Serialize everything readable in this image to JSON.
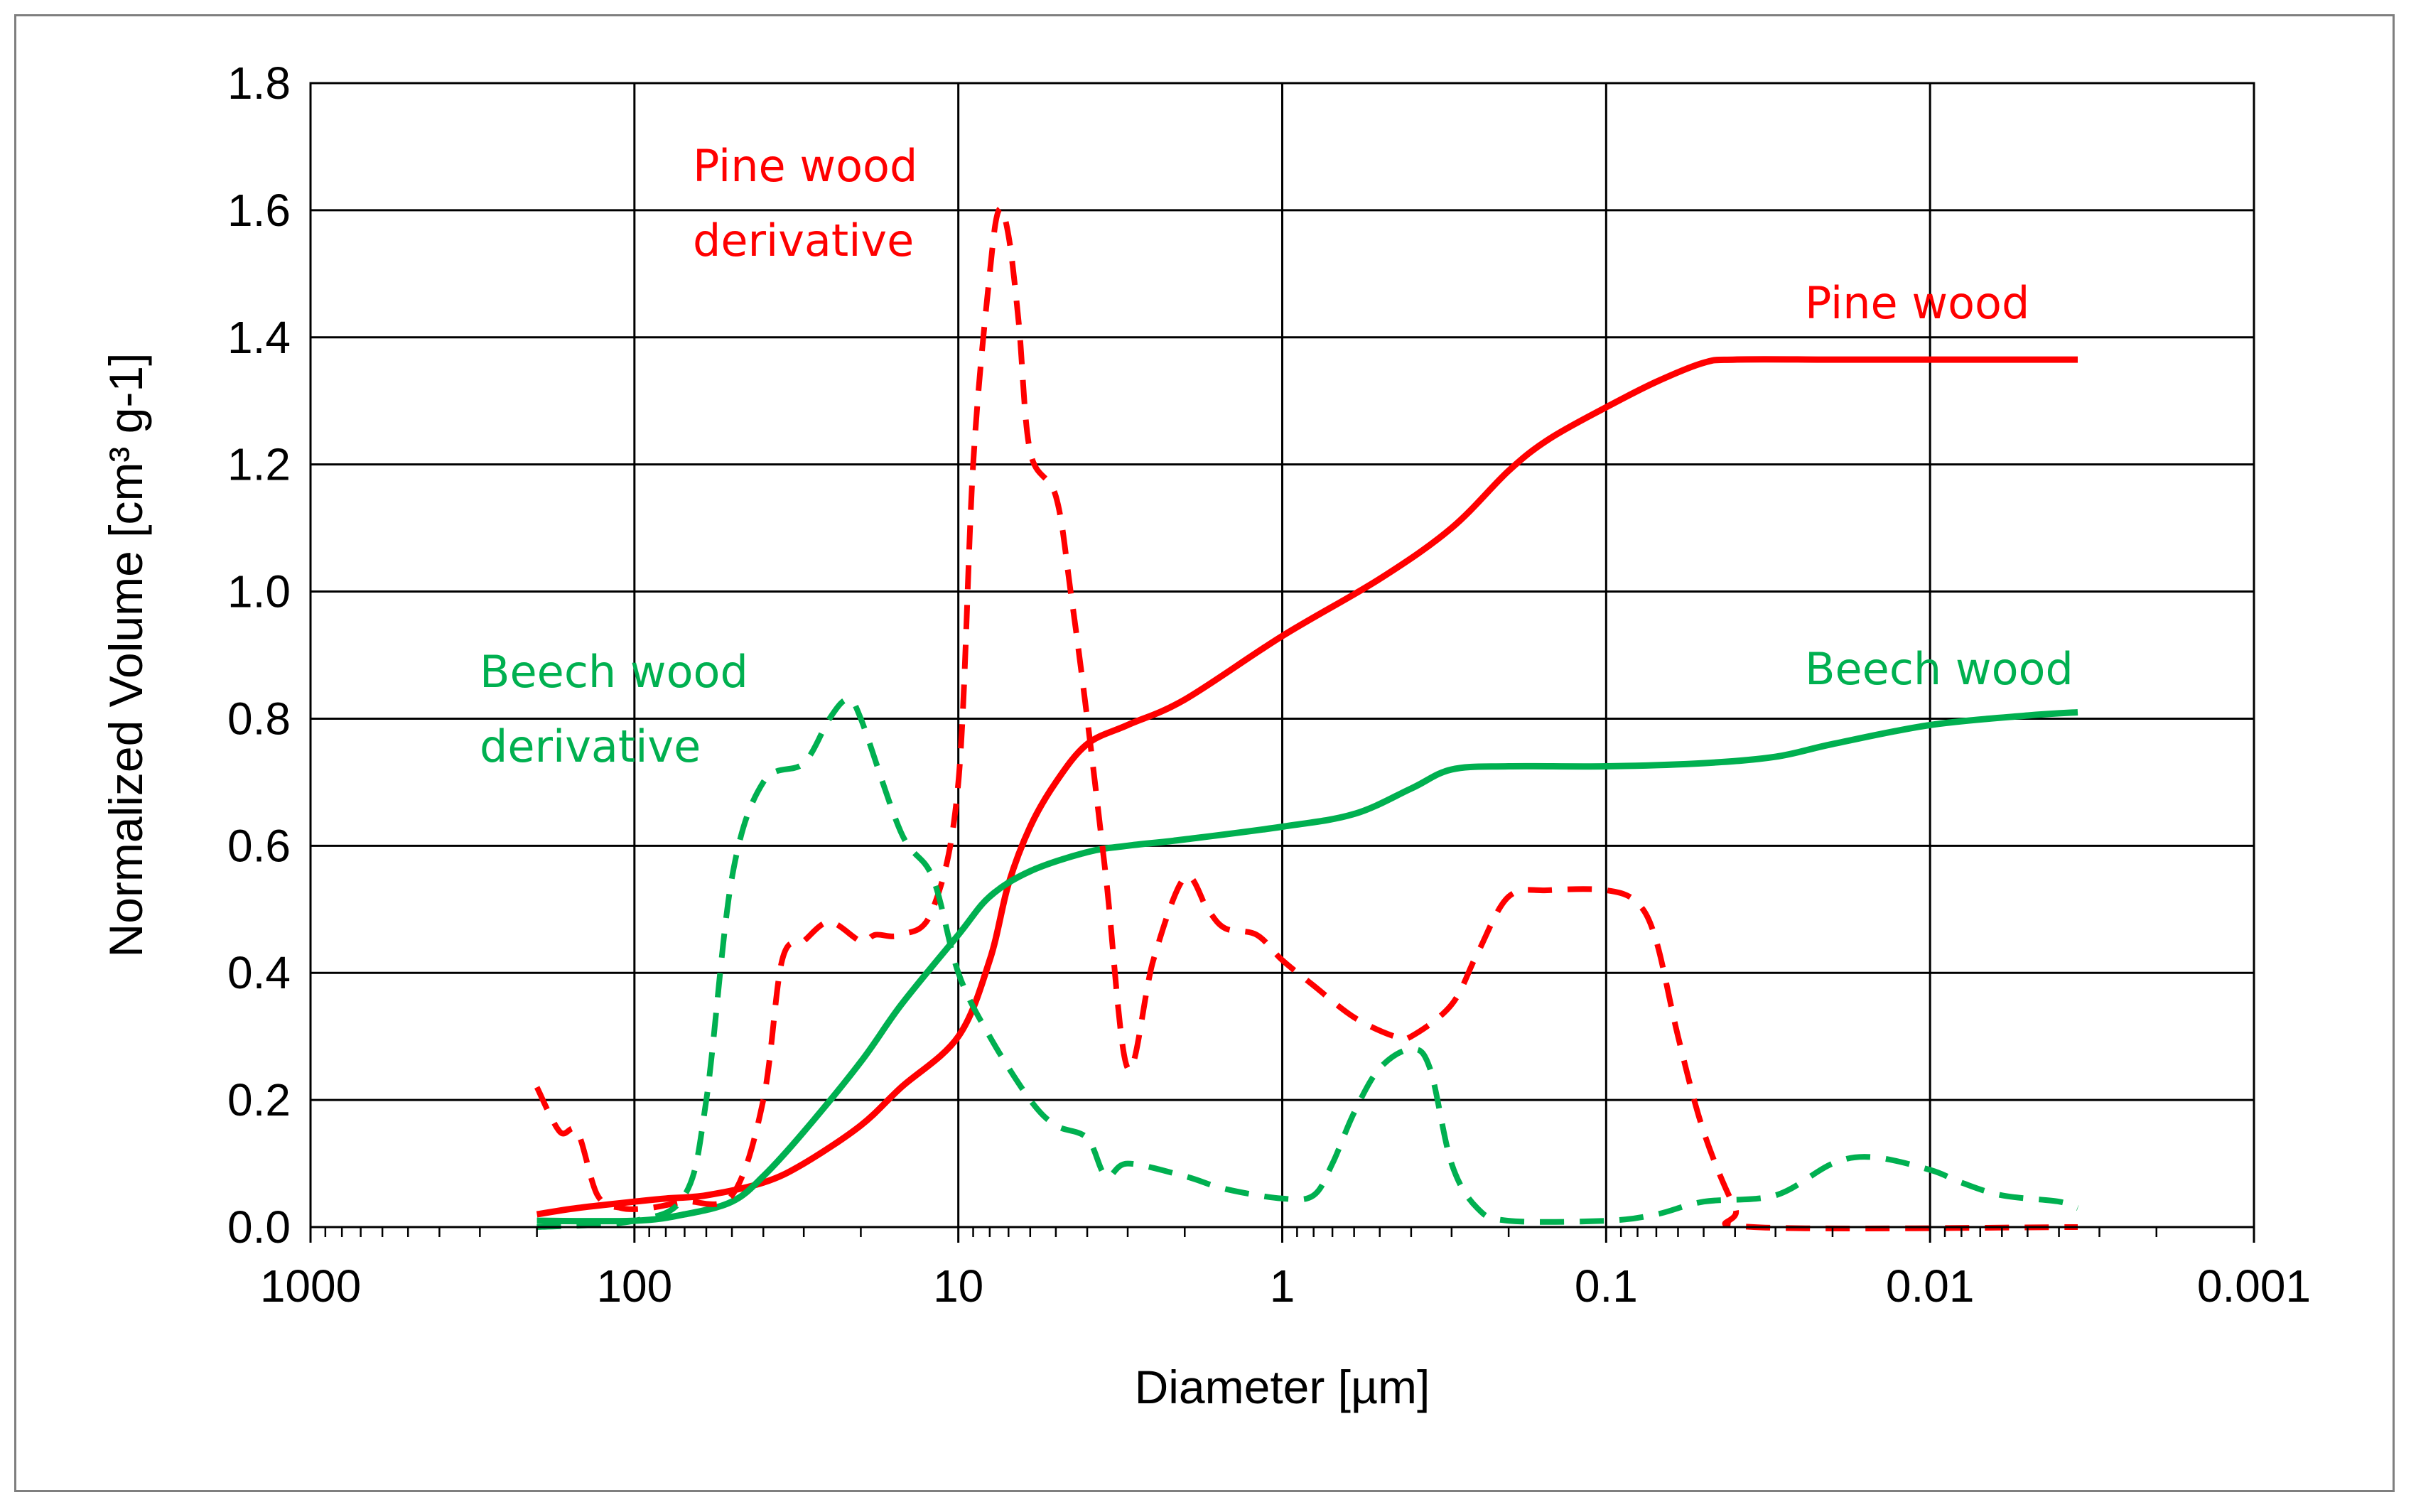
{
  "chart_data": {
    "type": "line",
    "xlabel": "Diameter [µm]",
    "ylabel": "Normalized Volume [cm³ g-1]",
    "xscale": "log",
    "xaxis_reversed": true,
    "xlim": [
      1000,
      0.001
    ],
    "ylim": [
      0,
      1.8
    ],
    "grid": true,
    "legend": "none",
    "x_ticks": [
      {
        "value": 1000,
        "label": "1000"
      },
      {
        "value": 100,
        "label": "100"
      },
      {
        "value": 10,
        "label": "10"
      },
      {
        "value": 1,
        "label": "1"
      },
      {
        "value": 0.1,
        "label": "0.1"
      },
      {
        "value": 0.01,
        "label": "0.01"
      },
      {
        "value": 0.001,
        "label": "0.001"
      }
    ],
    "y_ticks": [
      {
        "value": 0,
        "label": "0.0"
      },
      {
        "value": 0.2,
        "label": "0.2"
      },
      {
        "value": 0.4,
        "label": "0.4"
      },
      {
        "value": 0.6,
        "label": "0.6"
      },
      {
        "value": 0.8,
        "label": "0.8"
      },
      {
        "value": 1.0,
        "label": "1.0"
      },
      {
        "value": 1.2,
        "label": "1.2"
      },
      {
        "value": 1.4,
        "label": "1.4"
      },
      {
        "value": 1.6,
        "label": "1.6"
      },
      {
        "value": 1.8,
        "label": "1.8"
      }
    ],
    "series": [
      {
        "key": "pine-wood",
        "color": "#ff0000",
        "dash": false,
        "points": [
          [
            200,
            0.02
          ],
          [
            150,
            0.03
          ],
          [
            100,
            0.04
          ],
          [
            80,
            0.045
          ],
          [
            60,
            0.05
          ],
          [
            40,
            0.07
          ],
          [
            30,
            0.1
          ],
          [
            20,
            0.16
          ],
          [
            15,
            0.22
          ],
          [
            10,
            0.3
          ],
          [
            8,
            0.42
          ],
          [
            7,
            0.54
          ],
          [
            6,
            0.63
          ],
          [
            5,
            0.7
          ],
          [
            4,
            0.76
          ],
          [
            3,
            0.79
          ],
          [
            2,
            0.83
          ],
          [
            1,
            0.93
          ],
          [
            0.5,
            1.02
          ],
          [
            0.3,
            1.1
          ],
          [
            0.2,
            1.19
          ],
          [
            0.15,
            1.24
          ],
          [
            0.1,
            1.29
          ],
          [
            0.07,
            1.33
          ],
          [
            0.05,
            1.36
          ],
          [
            0.04,
            1.365
          ],
          [
            0.02,
            1.365
          ],
          [
            0.01,
            1.365
          ],
          [
            0.0035,
            1.365
          ]
        ]
      },
      {
        "key": "beech-wood",
        "color": "#00b050",
        "dash": false,
        "points": [
          [
            200,
            0.01
          ],
          [
            100,
            0.01
          ],
          [
            70,
            0.02
          ],
          [
            50,
            0.04
          ],
          [
            40,
            0.08
          ],
          [
            30,
            0.15
          ],
          [
            20,
            0.26
          ],
          [
            15,
            0.35
          ],
          [
            10,
            0.46
          ],
          [
            8,
            0.52
          ],
          [
            6,
            0.56
          ],
          [
            4,
            0.59
          ],
          [
            3,
            0.6
          ],
          [
            2,
            0.61
          ],
          [
            1,
            0.63
          ],
          [
            0.6,
            0.65
          ],
          [
            0.4,
            0.69
          ],
          [
            0.3,
            0.72
          ],
          [
            0.2,
            0.725
          ],
          [
            0.1,
            0.725
          ],
          [
            0.05,
            0.73
          ],
          [
            0.03,
            0.74
          ],
          [
            0.02,
            0.76
          ],
          [
            0.01,
            0.79
          ],
          [
            0.005,
            0.805
          ],
          [
            0.0035,
            0.81
          ]
        ]
      },
      {
        "key": "pine-wood-derivative",
        "color": "#ff0000",
        "dash": true,
        "points": [
          [
            200,
            0.22
          ],
          [
            170,
            0.15
          ],
          [
            150,
            0.15
          ],
          [
            130,
            0.05
          ],
          [
            110,
            0.03
          ],
          [
            90,
            0.03
          ],
          [
            70,
            0.04
          ],
          [
            50,
            0.05
          ],
          [
            40,
            0.2
          ],
          [
            35,
            0.42
          ],
          [
            30,
            0.45
          ],
          [
            25,
            0.48
          ],
          [
            20,
            0.45
          ],
          [
            18,
            0.46
          ],
          [
            15,
            0.46
          ],
          [
            12,
            0.5
          ],
          [
            10,
            0.7
          ],
          [
            9,
            1.2
          ],
          [
            8,
            1.5
          ],
          [
            7.5,
            1.6
          ],
          [
            7,
            1.56
          ],
          [
            6.5,
            1.42
          ],
          [
            6,
            1.22
          ],
          [
            5,
            1.15
          ],
          [
            4.5,
            1.0
          ],
          [
            4,
            0.8
          ],
          [
            3.5,
            0.55
          ],
          [
            3,
            0.25
          ],
          [
            2.5,
            0.42
          ],
          [
            2,
            0.55
          ],
          [
            1.7,
            0.5
          ],
          [
            1.5,
            0.47
          ],
          [
            1.2,
            0.46
          ],
          [
            1,
            0.42
          ],
          [
            0.8,
            0.38
          ],
          [
            0.6,
            0.33
          ],
          [
            0.45,
            0.3
          ],
          [
            0.4,
            0.3
          ],
          [
            0.3,
            0.35
          ],
          [
            0.25,
            0.43
          ],
          [
            0.2,
            0.52
          ],
          [
            0.15,
            0.53
          ],
          [
            0.1,
            0.53
          ],
          [
            0.08,
            0.51
          ],
          [
            0.07,
            0.45
          ],
          [
            0.06,
            0.3
          ],
          [
            0.05,
            0.15
          ],
          [
            0.04,
            0.03
          ],
          [
            0.035,
            0.0
          ],
          [
            0.0035,
            0.0
          ]
        ]
      },
      {
        "key": "beech-wood-derivative",
        "color": "#00b050",
        "dash": true,
        "points": [
          [
            200,
            0.0
          ],
          [
            100,
            0.01
          ],
          [
            70,
            0.05
          ],
          [
            60,
            0.2
          ],
          [
            50,
            0.55
          ],
          [
            40,
            0.7
          ],
          [
            30,
            0.73
          ],
          [
            25,
            0.8
          ],
          [
            22,
            0.83
          ],
          [
            20,
            0.8
          ],
          [
            15,
            0.62
          ],
          [
            12,
            0.55
          ],
          [
            10,
            0.4
          ],
          [
            8,
            0.3
          ],
          [
            6,
            0.2
          ],
          [
            5,
            0.16
          ],
          [
            4,
            0.14
          ],
          [
            3.5,
            0.08
          ],
          [
            3,
            0.1
          ],
          [
            2,
            0.08
          ],
          [
            1.5,
            0.06
          ],
          [
            1,
            0.045
          ],
          [
            0.8,
            0.05
          ],
          [
            0.7,
            0.1
          ],
          [
            0.6,
            0.18
          ],
          [
            0.5,
            0.25
          ],
          [
            0.4,
            0.28
          ],
          [
            0.35,
            0.25
          ],
          [
            0.3,
            0.1
          ],
          [
            0.25,
            0.03
          ],
          [
            0.2,
            0.01
          ],
          [
            0.1,
            0.01
          ],
          [
            0.07,
            0.02
          ],
          [
            0.05,
            0.04
          ],
          [
            0.03,
            0.05
          ],
          [
            0.02,
            0.1
          ],
          [
            0.015,
            0.11
          ],
          [
            0.01,
            0.09
          ],
          [
            0.008,
            0.07
          ],
          [
            0.006,
            0.05
          ],
          [
            0.004,
            0.04
          ],
          [
            0.0035,
            0.03
          ]
        ]
      }
    ],
    "annotations": [
      {
        "key": "pine-wood-derivative-label",
        "color": "#ff0000",
        "lines": [
          "Pine wood",
          "derivative"
        ]
      },
      {
        "key": "pine-wood-label",
        "color": "#ff0000",
        "lines": [
          "Pine wood"
        ]
      },
      {
        "key": "beech-wood-derivative-label",
        "color": "#00b050",
        "lines": [
          "Beech wood",
          "derivative"
        ]
      },
      {
        "key": "beech-wood-label",
        "color": "#00b050",
        "lines": [
          "Beech wood"
        ]
      }
    ]
  }
}
